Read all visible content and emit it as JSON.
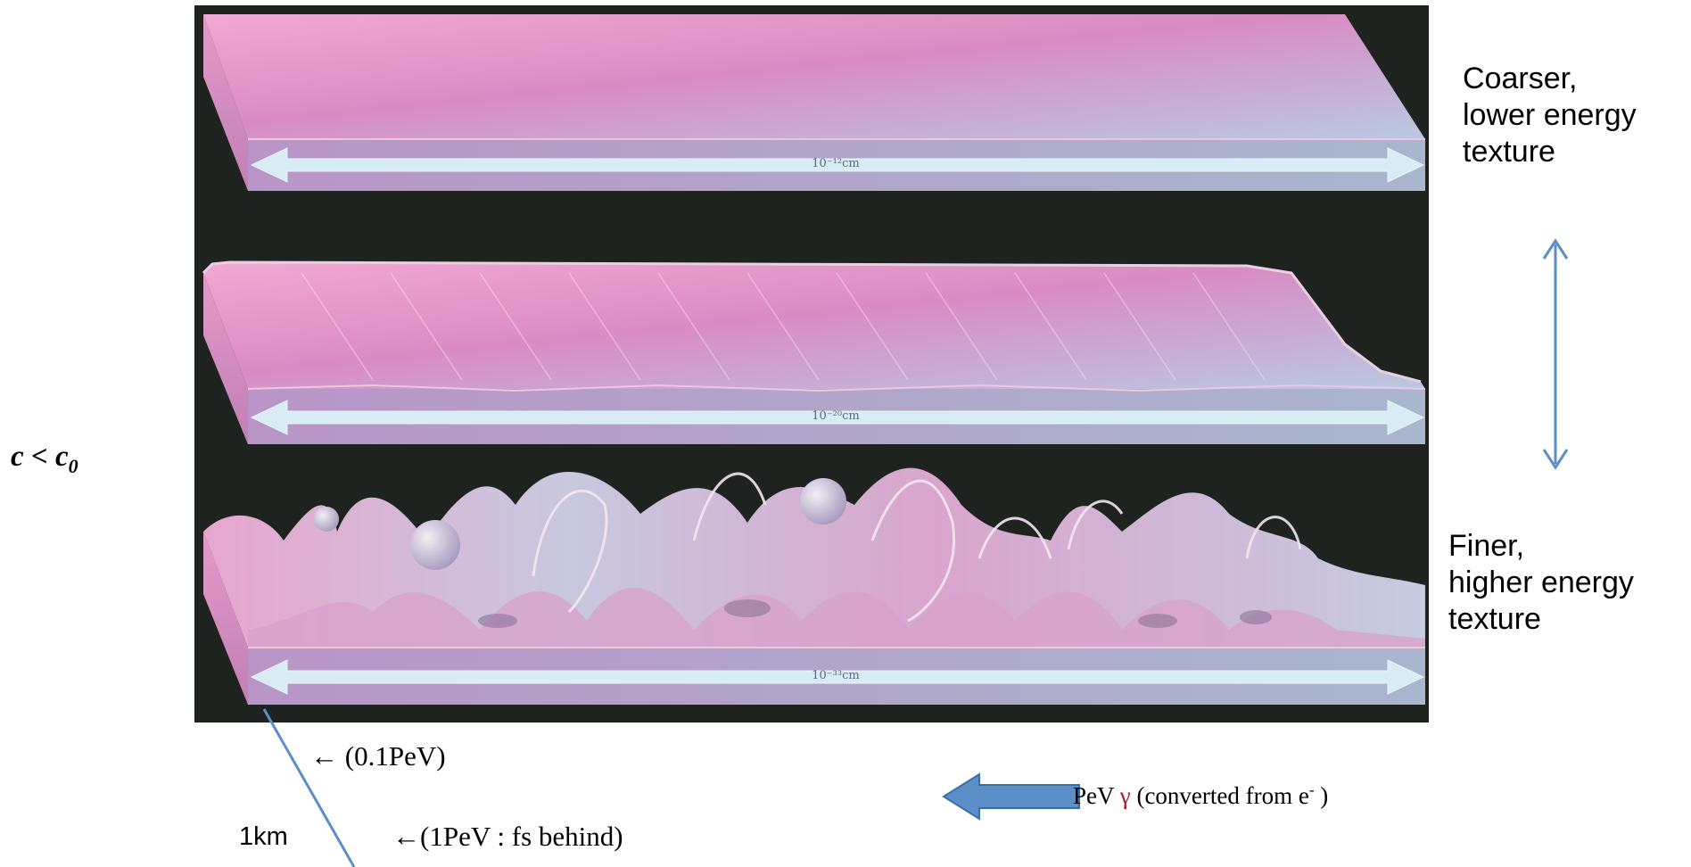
{
  "slabs": [
    {
      "scale": "10⁻¹²cm"
    },
    {
      "scale": "10⁻²⁰cm"
    },
    {
      "scale": "10⁻³³cm"
    }
  ],
  "right_notes": {
    "coarser": [
      "Coarser,",
      "lower energy",
      "texture"
    ],
    "finer": [
      "Finer,",
      "higher energy",
      "texture"
    ]
  },
  "left_label": {
    "c": "c < c",
    "sub": "0"
  },
  "bottom": {
    "pev01": "← (0.1PeV)",
    "pev1": "←(1PeV : fs behind)",
    "km": "1km",
    "photon_prefix": "PeV ",
    "photon_symbol": "γ",
    "photon_suffix": " (converted from e",
    "photon_charge": "-",
    "photon_close": " )"
  },
  "colors": {
    "slab_pink": "#e59ac8",
    "slab_blue": "#b8c6df",
    "arrow_light": "#d8ecf6",
    "accent_blue": "#5b8fc7",
    "gamma_red": "#a51d2d"
  }
}
